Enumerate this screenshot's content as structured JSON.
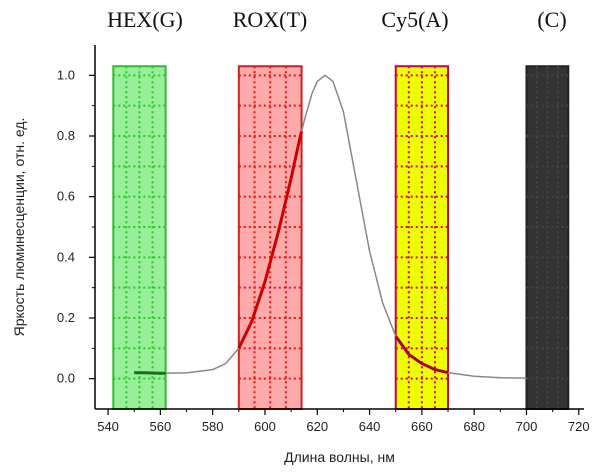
{
  "chart_data": {
    "type": "line",
    "xlabel": "Длина волны, нм",
    "ylabel": "Яркость люминесценции, отн. ед.",
    "xlim": [
      535,
      722
    ],
    "ylim": [
      -0.1,
      1.1
    ],
    "x_ticks": [
      "540",
      "560",
      "580",
      "600",
      "620",
      "640",
      "660",
      "680",
      "700",
      "720"
    ],
    "y_ticks": [
      "0.0",
      "0.2",
      "0.4",
      "0.6",
      "0.8",
      "1.0"
    ],
    "grid": false,
    "series": [
      {
        "color": "#888888",
        "points": [
          [
            550,
            0.02
          ],
          [
            560,
            0.018
          ],
          [
            570,
            0.019
          ],
          [
            580,
            0.03
          ],
          [
            585,
            0.05
          ],
          [
            590,
            0.1
          ],
          [
            595,
            0.19
          ],
          [
            600,
            0.32
          ],
          [
            605,
            0.48
          ],
          [
            610,
            0.66
          ],
          [
            613,
            0.78
          ],
          [
            615,
            0.85
          ],
          [
            618,
            0.94
          ],
          [
            620,
            0.98
          ],
          [
            623,
            1.0
          ],
          [
            626,
            0.98
          ],
          [
            630,
            0.88
          ],
          [
            635,
            0.65
          ],
          [
            640,
            0.42
          ],
          [
            645,
            0.25
          ],
          [
            650,
            0.14
          ],
          [
            655,
            0.08
          ],
          [
            660,
            0.05
          ],
          [
            665,
            0.03
          ],
          [
            670,
            0.02
          ],
          [
            680,
            0.008
          ],
          [
            690,
            0.003
          ],
          [
            700,
            0.002
          ]
        ]
      }
    ],
    "bands": [
      {
        "label": "HEX(G)",
        "x_range": [
          542,
          562
        ],
        "y_top": 1.03,
        "fill": "#99ee99",
        "stroke": "#33bb33",
        "grid": "#22cc22",
        "text_color": "#111111",
        "curve_color": "#1a6e1a"
      },
      {
        "label": "ROX(T)",
        "x_range": [
          590,
          614
        ],
        "y_top": 1.03,
        "fill": "#ffaaaa",
        "stroke": "#cc2222",
        "grid": "#ee1111",
        "text_color": "#111111",
        "curve_color": "#cc0000"
      },
      {
        "label": "Cy5(A)",
        "x_range": [
          650,
          670
        ],
        "y_top": 1.03,
        "fill": "#eeff00",
        "stroke": "#cc0044",
        "grid": "#dd0044",
        "text_color": "#111111",
        "curve_color": "#aa0044"
      },
      {
        "label": "(C)",
        "x_range": [
          700,
          716
        ],
        "y_top": 1.03,
        "fill": "#333333",
        "stroke": "#222222",
        "grid": "#444444",
        "text_color": "#111111",
        "curve_color": "#333333"
      }
    ]
  }
}
